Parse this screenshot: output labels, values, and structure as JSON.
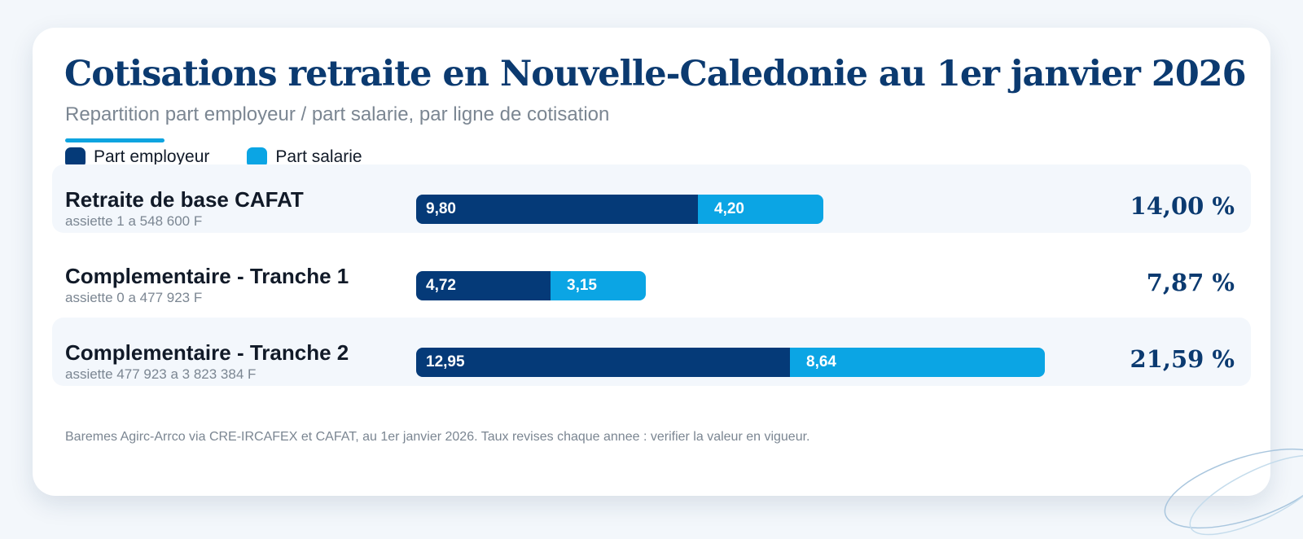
{
  "title": "Cotisations retraite en Nouvelle-Caledonie au 1er janvier 2026",
  "subtitle": "Repartition part employeur / part salarie, par ligne de cotisation",
  "footnote": "Baremes Agirc-Arrco via CRE-IRCAFEX et CAFAT, au 1er janvier 2026. Taux revises chaque annee : verifier la valeur en vigueur.",
  "colors": {
    "employer": "#053a78",
    "employee": "#0ba5e4",
    "title": "#0b3a70",
    "accent": "#0ea4e0"
  },
  "chart_data": {
    "type": "bar",
    "orientation": "horizontal",
    "stacked": true,
    "title": "Cotisations retraite en Nouvelle-Caledonie au 1er janvier 2026",
    "subtitle": "Repartition part employeur / part salarie, par ligne de cotisation",
    "legend": [
      "Part employeur",
      "Part salarie"
    ],
    "legend_position": "top-left",
    "categories": [
      {
        "label": "Retraite de base CAFAT",
        "sub": "assiette 1 a 548 600 F",
        "total": "14,00 %"
      },
      {
        "label": "Complementaire - Tranche 1",
        "sub": "assiette 0 a 477 923 F",
        "total": "7,87 %"
      },
      {
        "label": "Complementaire - Tranche 2",
        "sub": "assiette 477 923 a 3 823 384 F",
        "total": "21,59 %"
      }
    ],
    "series": [
      {
        "name": "Part employeur",
        "values": [
          9.8,
          4.72,
          12.95
        ],
        "labels": [
          "9,80",
          "4,72",
          "12,95"
        ]
      },
      {
        "name": "Part salarie",
        "values": [
          4.2,
          3.15,
          8.64
        ],
        "labels": [
          "4,20",
          "3,15",
          "8,64"
        ]
      }
    ],
    "xlim": [
      0,
      28
    ],
    "grid": false
  }
}
